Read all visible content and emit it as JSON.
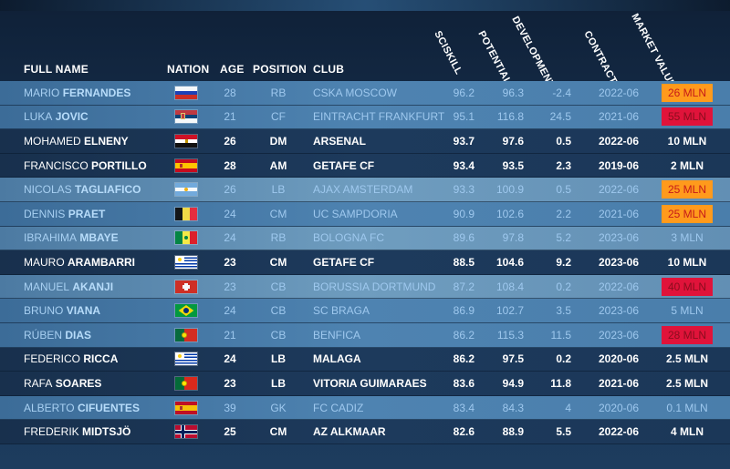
{
  "headers": {
    "full_name": "FULL NAME",
    "nation": "NATION",
    "age": "AGE",
    "position": "POSITION",
    "club": "CLUB",
    "sciskill": "SCISKILL",
    "potential": "POTENTIAL",
    "development": "DEVELOPMENT",
    "contract": "CONTRACT",
    "market_value": "MARKET VALUE"
  },
  "colors": {
    "highlight_orange": "#ff9a1c",
    "highlight_red": "#e0133a",
    "row_dim": "#4e83b1",
    "row_bright": "#1d3a5c"
  },
  "players": [
    {
      "first": "MARIO",
      "last": "FERNANDES",
      "nation_icon": "russia-flag-icon",
      "age": "28",
      "position": "RB",
      "club": "CSKA MOSCOW",
      "sciskill": "96.2",
      "potential": "96.3",
      "development": "-2.4",
      "contract": "2022-06",
      "market_value": "26 MLN",
      "style": "dim",
      "highlight": "orange"
    },
    {
      "first": "LUKA",
      "last": "JOVIC",
      "nation_icon": "serbia-flag-icon",
      "age": "21",
      "position": "CF",
      "club": "EINTRACHT FRANKFURT",
      "sciskill": "95.1",
      "potential": "116.8",
      "development": "24.5",
      "contract": "2021-06",
      "market_value": "55 MLN",
      "style": "dim",
      "highlight": "red"
    },
    {
      "first": "MOHAMED",
      "last": "ELNENY",
      "nation_icon": "egypt-flag-icon",
      "age": "26",
      "position": "DM",
      "club": "ARSENAL",
      "sciskill": "93.7",
      "potential": "97.6",
      "development": "0.5",
      "contract": "2022-06",
      "market_value": "10 MLN",
      "style": "bright",
      "highlight": ""
    },
    {
      "first": "FRANCISCO",
      "last": "PORTILLO",
      "nation_icon": "spain-flag-icon",
      "age": "28",
      "position": "AM",
      "club": "GETAFE CF",
      "sciskill": "93.4",
      "potential": "93.5",
      "development": "2.3",
      "contract": "2019-06",
      "market_value": "2 MLN",
      "style": "bright",
      "highlight": ""
    },
    {
      "first": "NICOLAS",
      "last": "TAGLIAFICO",
      "nation_icon": "argentina-flag-icon",
      "age": "26",
      "position": "LB",
      "club": "AJAX AMSTERDAM",
      "sciskill": "93.3",
      "potential": "100.9",
      "development": "0.5",
      "contract": "2022-06",
      "market_value": "25 MLN",
      "style": "dim soft",
      "highlight": "orange"
    },
    {
      "first": "DENNIS",
      "last": "PRAET",
      "nation_icon": "belgium-flag-icon",
      "age": "24",
      "position": "CM",
      "club": "UC SAMPDORIA",
      "sciskill": "90.9",
      "potential": "102.6",
      "development": "2.2",
      "contract": "2021-06",
      "market_value": "25 MLN",
      "style": "dim",
      "highlight": "orange"
    },
    {
      "first": "IBRAHIMA",
      "last": "MBAYE",
      "nation_icon": "senegal-flag-icon",
      "age": "24",
      "position": "RB",
      "club": "BOLOGNA FC",
      "sciskill": "89.6",
      "potential": "97.8",
      "development": "5.2",
      "contract": "2023-06",
      "market_value": "3 MLN",
      "style": "dim soft",
      "highlight": ""
    },
    {
      "first": "MAURO",
      "last": "ARAMBARRI",
      "nation_icon": "uruguay-flag-icon",
      "age": "23",
      "position": "CM",
      "club": "GETAFE CF",
      "sciskill": "88.5",
      "potential": "104.6",
      "development": "9.2",
      "contract": "2023-06",
      "market_value": "10 MLN",
      "style": "bright",
      "highlight": ""
    },
    {
      "first": "MANUEL",
      "last": "AKANJI",
      "nation_icon": "switzerland-flag-icon",
      "age": "23",
      "position": "CB",
      "club": "BORUSSIA DORTMUND",
      "sciskill": "87.2",
      "potential": "108.4",
      "development": "0.2",
      "contract": "2022-06",
      "market_value": "40 MLN",
      "style": "dim soft",
      "highlight": "red"
    },
    {
      "first": "BRUNO",
      "last": "VIANA",
      "nation_icon": "brazil-flag-icon",
      "age": "24",
      "position": "CB",
      "club": "SC BRAGA",
      "sciskill": "86.9",
      "potential": "102.7",
      "development": "3.5",
      "contract": "2023-06",
      "market_value": "5 MLN",
      "style": "dim",
      "highlight": ""
    },
    {
      "first": "RÚBEN",
      "last": "DIAS",
      "nation_icon": "portugal-flag-icon",
      "age": "21",
      "position": "CB",
      "club": "BENFICA",
      "sciskill": "86.2",
      "potential": "115.3",
      "development": "11.5",
      "contract": "2023-06",
      "market_value": "28 MLN",
      "style": "dim",
      "highlight": "red"
    },
    {
      "first": "FEDERICO",
      "last": "RICCA",
      "nation_icon": "uruguay-flag-icon",
      "age": "24",
      "position": "LB",
      "club": "MALAGA",
      "sciskill": "86.2",
      "potential": "97.5",
      "development": "0.2",
      "contract": "2020-06",
      "market_value": "2.5 MLN",
      "style": "bright",
      "highlight": ""
    },
    {
      "first": "RAFA",
      "last": "SOARES",
      "nation_icon": "portugal-flag-icon",
      "age": "23",
      "position": "LB",
      "club": "VITORIA GUIMARAES",
      "sciskill": "83.6",
      "potential": "94.9",
      "development": "11.8",
      "contract": "2021-06",
      "market_value": "2.5 MLN",
      "style": "bright",
      "highlight": ""
    },
    {
      "first": "ALBERTO",
      "last": "CIFUENTES",
      "nation_icon": "spain-flag-icon",
      "age": "39",
      "position": "GK",
      "club": "FC CADIZ",
      "sciskill": "83.4",
      "potential": "84.3",
      "development": "4",
      "contract": "2020-06",
      "market_value": "0.1 MLN",
      "style": "dim",
      "highlight": ""
    },
    {
      "first": "FREDERIK",
      "last": "MIDTSJÖ",
      "nation_icon": "norway-flag-icon",
      "age": "25",
      "position": "CM",
      "club": "AZ ALKMAAR",
      "sciskill": "82.6",
      "potential": "88.9",
      "development": "5.5",
      "contract": "2022-06",
      "market_value": "4 MLN",
      "style": "bright",
      "highlight": ""
    }
  ]
}
